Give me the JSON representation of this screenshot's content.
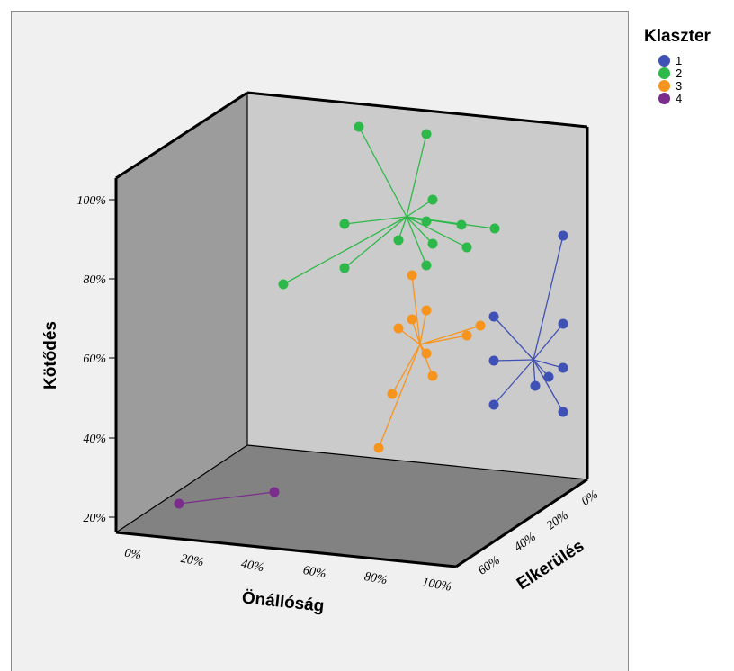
{
  "chart_data": {
    "type": "scatter",
    "subtype": "3d-scatter-with-centroid-spikes",
    "axes": {
      "x": {
        "title": "Önállóság",
        "ticks": [
          "0%",
          "20%",
          "40%",
          "60%",
          "80%",
          "100%"
        ],
        "range": [
          0,
          100
        ]
      },
      "y": {
        "title": "Kötődés",
        "ticks": [
          "20%",
          "40%",
          "60%",
          "80%",
          "100%"
        ],
        "range": [
          20,
          100
        ]
      },
      "z": {
        "title": "Elkerülés",
        "ticks": [
          "0%",
          "20%",
          "40%",
          "60%"
        ],
        "range": [
          0,
          60
        ]
      }
    },
    "legend": {
      "title": "Klaszter",
      "placement": "right",
      "entries": [
        {
          "label": "1",
          "color": "#3f51b5"
        },
        {
          "label": "2",
          "color": "#2db94a"
        },
        {
          "label": "3",
          "color": "#f7941d"
        },
        {
          "label": "4",
          "color": "#7b2d8e"
        }
      ]
    },
    "clusters": [
      {
        "label": "1",
        "color": "#3f51b5",
        "centroid": [
          593,
          400
        ],
        "points": [
          [
            626,
            262
          ],
          [
            549,
            352
          ],
          [
            626,
            360
          ],
          [
            549,
            401
          ],
          [
            626,
            409
          ],
          [
            610,
            419
          ],
          [
            595,
            429
          ],
          [
            549,
            450
          ],
          [
            626,
            458
          ]
        ]
      },
      {
        "label": "2",
        "color": "#2db94a",
        "centroid": [
          452,
          241
        ],
        "points": [
          [
            399,
            141
          ],
          [
            474,
            149
          ],
          [
            481,
            222
          ],
          [
            383,
            249
          ],
          [
            474,
            246
          ],
          [
            513,
            250
          ],
          [
            550,
            254
          ],
          [
            443,
            267
          ],
          [
            481,
            271
          ],
          [
            519,
            275
          ],
          [
            383,
            298
          ],
          [
            474,
            295
          ],
          [
            315,
            316
          ]
        ]
      },
      {
        "label": "3",
        "color": "#f7941d",
        "centroid": [
          467,
          383
        ],
        "points": [
          [
            458,
            306
          ],
          [
            474,
            345
          ],
          [
            458,
            355
          ],
          [
            443,
            365
          ],
          [
            534,
            362
          ],
          [
            519,
            373
          ],
          [
            474,
            393
          ],
          [
            481,
            418
          ],
          [
            436,
            438
          ],
          [
            421,
            498
          ]
        ]
      },
      {
        "label": "4",
        "color": "#7b2d8e",
        "centroid": null,
        "points": [
          [
            199,
            560
          ],
          [
            305,
            547
          ]
        ]
      }
    ],
    "grid": false
  }
}
